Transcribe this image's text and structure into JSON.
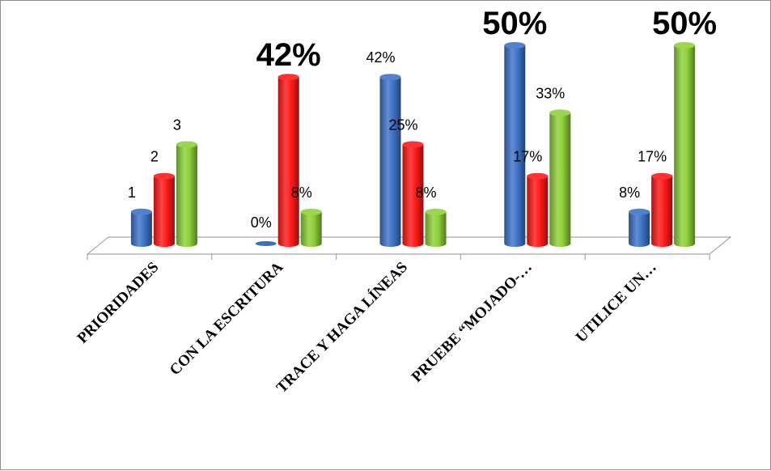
{
  "chart_data": {
    "type": "bar",
    "style": "3d-cylinder",
    "categories": [
      "PRIORIDADES",
      "CON LA ESCRITURA",
      "TRACE Y HAGA LÍNEAS",
      "PRUEBE “MOJADO-…",
      "UTILICE UN…"
    ],
    "series": [
      {
        "color": "#3f74c8",
        "values": [
          8,
          0,
          42,
          50,
          8
        ]
      },
      {
        "color": "#ff1a1a",
        "values": [
          17,
          42,
          25,
          17,
          17
        ]
      },
      {
        "color": "#8fd13a",
        "values": [
          25,
          8,
          8,
          33,
          50
        ]
      }
    ],
    "data_labels": [
      [
        "1",
        "2",
        "3"
      ],
      [
        "0%",
        "42%",
        "8%"
      ],
      [
        "42%",
        "25%",
        "8%"
      ],
      [
        "50%",
        "17%",
        "33%"
      ],
      [
        "8%",
        "17%",
        "50%"
      ]
    ],
    "big_labels": [
      [
        false,
        false,
        false
      ],
      [
        false,
        true,
        false
      ],
      [
        false,
        false,
        false
      ],
      [
        true,
        false,
        false
      ],
      [
        false,
        false,
        true
      ]
    ],
    "ylim": [
      0,
      50
    ],
    "grid": false,
    "legend": "none"
  }
}
